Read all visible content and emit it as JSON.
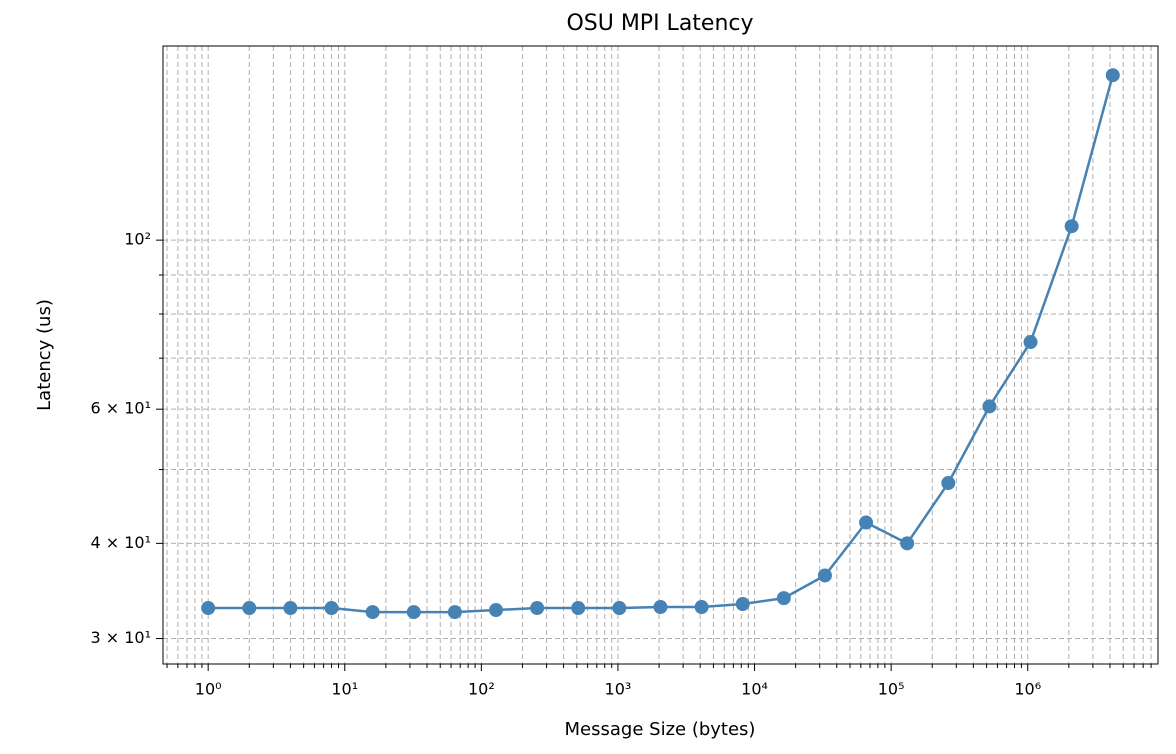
{
  "chart_data": {
    "type": "line",
    "title": "OSU MPI Latency",
    "x_label": "Message Size (bytes)",
    "y_label": "Latency (us)",
    "x": [
      1,
      2,
      4,
      8,
      16,
      32,
      64,
      128,
      256,
      512,
      1024,
      2048,
      4096,
      8192,
      16384,
      32768,
      65536,
      131072,
      262144,
      524288,
      1048576,
      2097152,
      4194304
    ],
    "values": [
      32.9,
      32.9,
      32.9,
      32.9,
      32.5,
      32.5,
      32.5,
      32.7,
      32.9,
      32.9,
      32.9,
      33.0,
      33.0,
      33.3,
      33.9,
      36.3,
      42.6,
      40.0,
      48.0,
      60.5,
      73.5,
      104.3,
      164.6
    ],
    "color": "#4682b4",
    "marker": "o",
    "xscale": "log",
    "yscale": "log",
    "xlim": [
      0.467,
      8990000
    ],
    "ylim": [
      27.78,
      179.8
    ],
    "xticks": [
      {
        "value": 1,
        "label": "10⁰"
      },
      {
        "value": 10,
        "label": "10¹"
      },
      {
        "value": 100,
        "label": "10²"
      },
      {
        "value": 1000,
        "label": "10³"
      },
      {
        "value": 10000,
        "label": "10⁴"
      },
      {
        "value": 100000,
        "label": "10⁵"
      },
      {
        "value": 1000000,
        "label": "10⁶"
      }
    ],
    "yticks": [
      {
        "value": 30,
        "label": "3 × 10¹"
      },
      {
        "value": 40,
        "label": "4 × 10¹"
      },
      {
        "value": 60,
        "label": "6 × 10¹"
      },
      {
        "value": 100,
        "label": "10²"
      }
    ],
    "xminor_ticks": [
      0.5,
      0.6,
      0.7,
      0.8,
      0.9,
      2,
      3,
      4,
      5,
      6,
      7,
      8,
      9,
      20,
      30,
      40,
      50,
      60,
      70,
      80,
      90,
      200,
      300,
      400,
      500,
      600,
      700,
      800,
      900,
      2000,
      3000,
      4000,
      5000,
      6000,
      7000,
      8000,
      9000,
      20000,
      30000,
      40000,
      50000,
      60000,
      70000,
      80000,
      90000,
      200000,
      300000,
      400000,
      500000,
      600000,
      700000,
      800000,
      900000,
      2000000,
      3000000,
      4000000,
      5000000,
      6000000,
      7000000,
      8000000
    ],
    "yminor_ticks": [
      50,
      70,
      80,
      90
    ],
    "grid": true
  }
}
